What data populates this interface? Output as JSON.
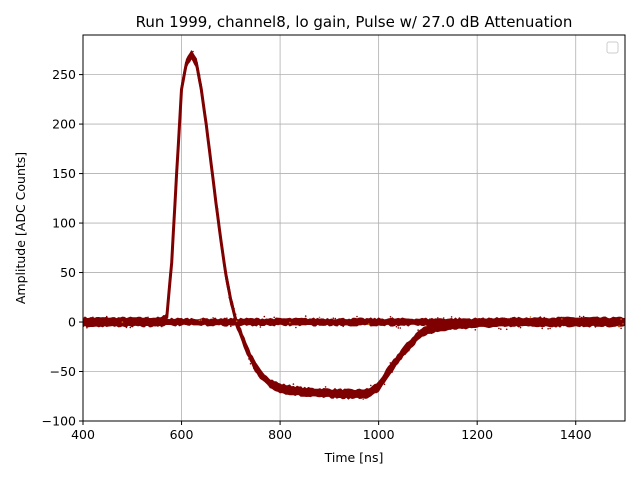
{
  "chart_data": {
    "type": "line",
    "title": "Run 1999, channel8, lo gain, Pulse w/ 27.0 dB Attenuation",
    "xlabel": "Time [ns]",
    "ylabel": "Amplitude [ADC Counts]",
    "xlim": [
      400,
      1500
    ],
    "ylim": [
      -100,
      290
    ],
    "xticks": [
      400,
      600,
      800,
      1000,
      1200,
      1400
    ],
    "yticks": [
      -100,
      -50,
      0,
      50,
      100,
      150,
      200,
      250
    ],
    "grid": true,
    "legend": {
      "location": "upper right",
      "entries": []
    },
    "series_color": "#7f0000",
    "baseline_noise_color": "#cc6600",
    "series": [
      {
        "x": [
          400,
          560,
          570,
          580,
          590,
          600,
          610,
          620,
          630,
          640,
          650,
          660,
          670,
          680,
          690,
          700,
          710,
          720,
          730,
          740,
          750,
          760,
          780,
          800,
          850,
          900,
          950,
          980,
          1000,
          1020,
          1050,
          1080,
          1100,
          1150,
          1200,
          1300,
          1400,
          1500
        ],
        "y": [
          0,
          0,
          5,
          60,
          150,
          235,
          262,
          270,
          262,
          235,
          200,
          160,
          120,
          82,
          48,
          22,
          2,
          -12,
          -24,
          -36,
          -46,
          -53,
          -62,
          -67,
          -71,
          -72,
          -73,
          -72,
          -65,
          -50,
          -30,
          -14,
          -7,
          -3,
          -1,
          0,
          0,
          0
        ],
        "band": 8
      },
      {
        "x": [
          400,
          1500
        ],
        "y": [
          0,
          0
        ],
        "band": 6
      }
    ]
  }
}
